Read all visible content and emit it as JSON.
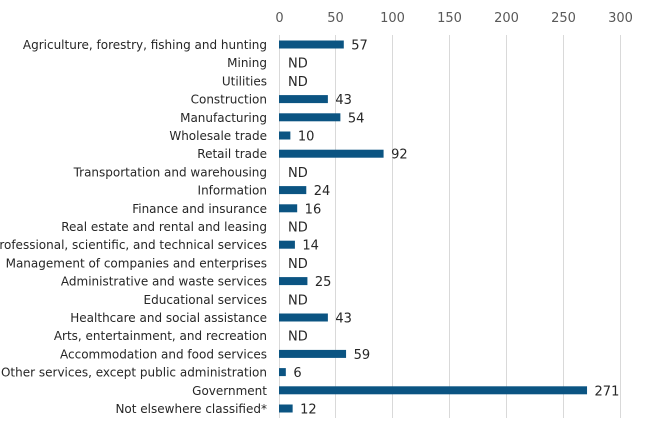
{
  "chart_data": {
    "type": "bar",
    "orientation": "horizontal",
    "title": "",
    "xlabel": "",
    "ylabel": "",
    "xlim": [
      0,
      300
    ],
    "x_ticks": [
      0,
      50,
      100,
      150,
      200,
      250,
      300
    ],
    "x_axis_position": "top",
    "grid": true,
    "legend": "none",
    "bar_color": "#0b5482",
    "categories": [
      "Agriculture, forestry, fishing and hunting",
      "Mining",
      "Utilities",
      "Construction",
      "Manufacturing",
      "Wholesale trade",
      "Retail trade",
      "Transportation and warehousing",
      "Information",
      "Finance and insurance",
      "Real estate and rental and leasing",
      "Professional, scientific, and technical services",
      "Management of companies and enterprises",
      "Administrative and waste services",
      "Educational services",
      "Healthcare and social assistance",
      "Arts, entertainment, and recreation",
      "Accommodation and food services",
      "Other services, except public administration",
      "Government",
      "Not elsewhere classified*"
    ],
    "values": [
      57,
      null,
      null,
      43,
      54,
      10,
      92,
      null,
      24,
      16,
      null,
      14,
      null,
      25,
      null,
      43,
      null,
      59,
      6,
      271,
      12
    ],
    "data_labels": [
      "57",
      "ND",
      "ND",
      "43",
      "54",
      "10",
      "92",
      "ND",
      "24",
      "16",
      "ND",
      "14",
      "ND",
      "25",
      "ND",
      "43",
      "ND",
      "59",
      "6",
      "271",
      "12"
    ],
    "missing_label": "ND"
  }
}
